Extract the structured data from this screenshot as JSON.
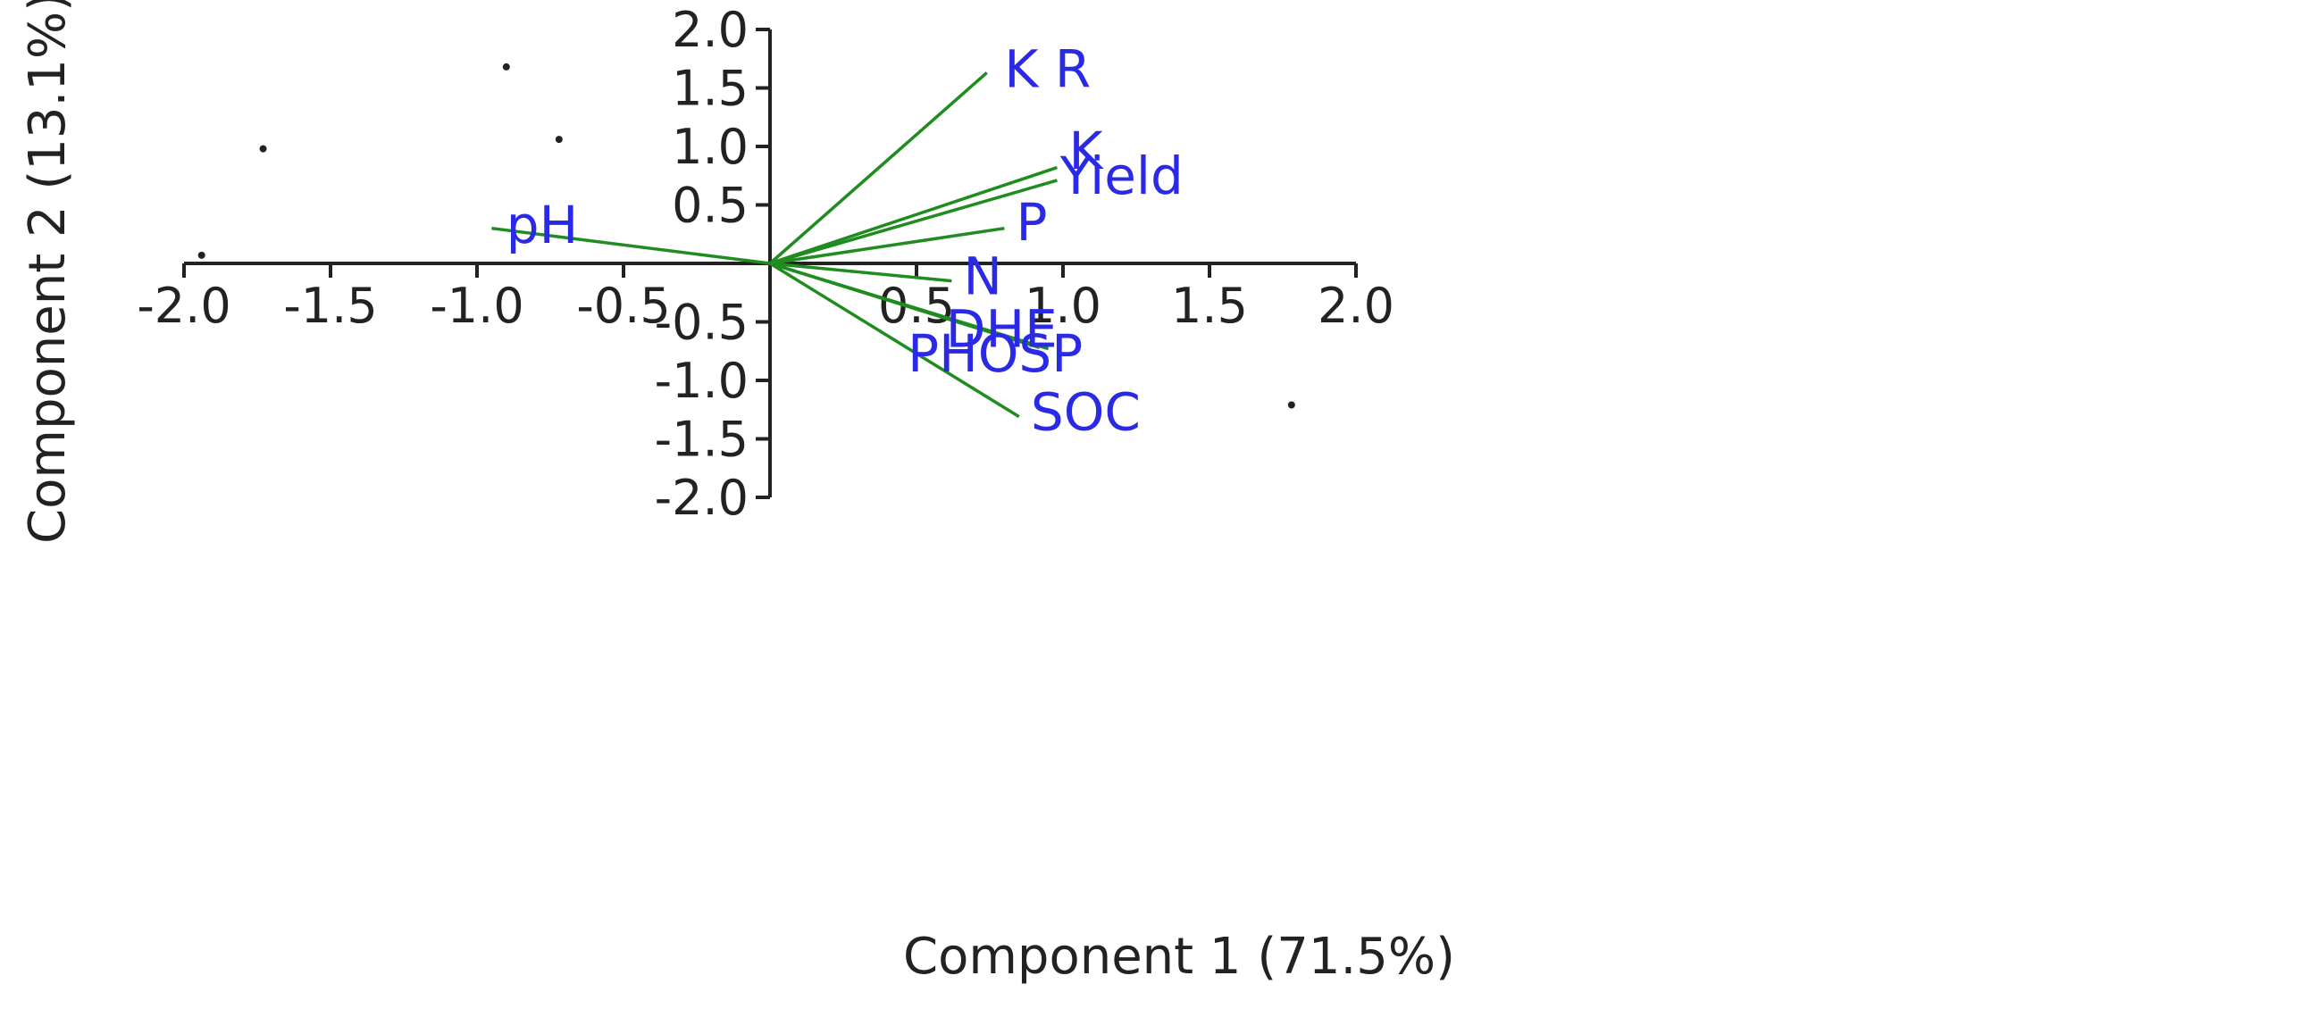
{
  "chart_data": {
    "type": "biplot",
    "xlabel": "Component 1 (71.5%)",
    "ylabel": "Component 2 (13.1%)",
    "xlim": [
      -2.0,
      2.0
    ],
    "ylim": [
      -2.0,
      2.0
    ],
    "x_ticks": [
      "-2.0",
      "-1.5",
      "-1.0",
      "-0.5",
      "0.5",
      "1.0",
      "1.5",
      "2.0"
    ],
    "x_tick_values": [
      -2.0,
      -1.5,
      -1.0,
      -0.5,
      0.5,
      1.0,
      1.5,
      2.0
    ],
    "y_ticks": [
      "2.0",
      "1.5",
      "1.0",
      "0.5",
      "-0.5",
      "-1.0",
      "-1.5",
      "-2.0"
    ],
    "y_tick_values": [
      2.0,
      1.5,
      1.0,
      0.5,
      -0.5,
      -1.0,
      -1.5,
      -2.0
    ],
    "grid": false,
    "colors": {
      "vector": "#1e8c1e",
      "label": "#2a2ae6",
      "axis": "#222222",
      "point": "#222222"
    },
    "vectors": [
      {
        "name": "K R",
        "x": 0.74,
        "y": 1.63,
        "label_x": 0.8,
        "label_y": 1.66
      },
      {
        "name": "K",
        "x": 0.98,
        "y": 0.82,
        "label_x": 1.02,
        "label_y": 0.96
      },
      {
        "name": "Yield",
        "x": 0.98,
        "y": 0.71,
        "label_x": 0.99,
        "label_y": 0.75
      },
      {
        "name": "P",
        "x": 0.8,
        "y": 0.3,
        "label_x": 0.84,
        "label_y": 0.35
      },
      {
        "name": "pH",
        "x": -0.95,
        "y": 0.3,
        "label_x": -0.9,
        "label_y": 0.33
      },
      {
        "name": "N",
        "x": 0.62,
        "y": -0.15,
        "label_x": 0.66,
        "label_y": -0.11
      },
      {
        "name": "DHE",
        "x": 0.92,
        "y": -0.72,
        "label_x": 0.6,
        "label_y": -0.56
      },
      {
        "name": "PHOSP",
        "x": 0.95,
        "y": -0.73,
        "label_x": 0.47,
        "label_y": -0.77
      },
      {
        "name": "SOC",
        "x": 0.85,
        "y": -1.31,
        "label_x": 0.89,
        "label_y": -1.27
      }
    ],
    "points": [
      {
        "x": -1.94,
        "y": 0.07
      },
      {
        "x": -1.73,
        "y": 0.98
      },
      {
        "x": -0.9,
        "y": 1.68
      },
      {
        "x": -0.72,
        "y": 1.06
      },
      {
        "x": 1.78,
        "y": -1.21
      }
    ]
  }
}
